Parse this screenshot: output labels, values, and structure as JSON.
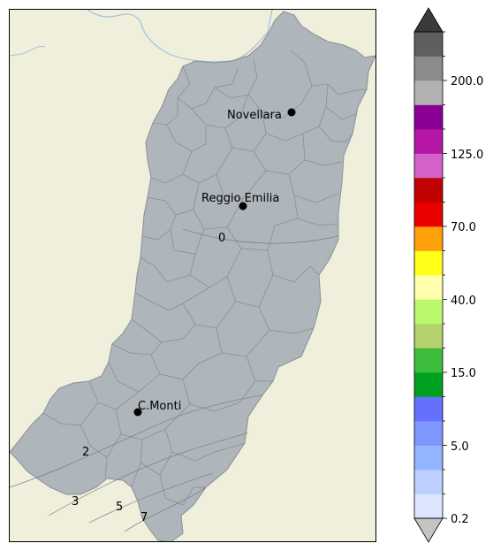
{
  "map": {
    "cities": [
      {
        "name": "Novellara"
      },
      {
        "name": "Reggio Emilia"
      },
      {
        "name": "C.Monti"
      }
    ],
    "contour_labels": [
      "0",
      "2",
      "3",
      "5",
      "7"
    ],
    "colors": {
      "background": "#f0efdc",
      "region_fill": "#aeb5bb",
      "region_border": "#8a8f96",
      "river": "#9ec2e2"
    }
  },
  "colorbar": {
    "colors": [
      "#dde6ff",
      "#bccfff",
      "#93b4ff",
      "#7e97ff",
      "#6471ff",
      "#00a020",
      "#3cbe3c",
      "#b4d26e",
      "#baf96e",
      "#ffffad",
      "#ffff1a",
      "#ffa00a",
      "#eb0000",
      "#c10000",
      "#d261c8",
      "#b616a4",
      "#8a0095",
      "#b2b2b2",
      "#8b8b8b",
      "#5f5f5f"
    ],
    "under_color": "#c4c4c4",
    "over_color": "#3a3a3a",
    "tick_labels": [
      "0.2",
      "5.0",
      "15.0",
      "40.0",
      "70.0",
      "125.0",
      "200.0"
    ]
  }
}
